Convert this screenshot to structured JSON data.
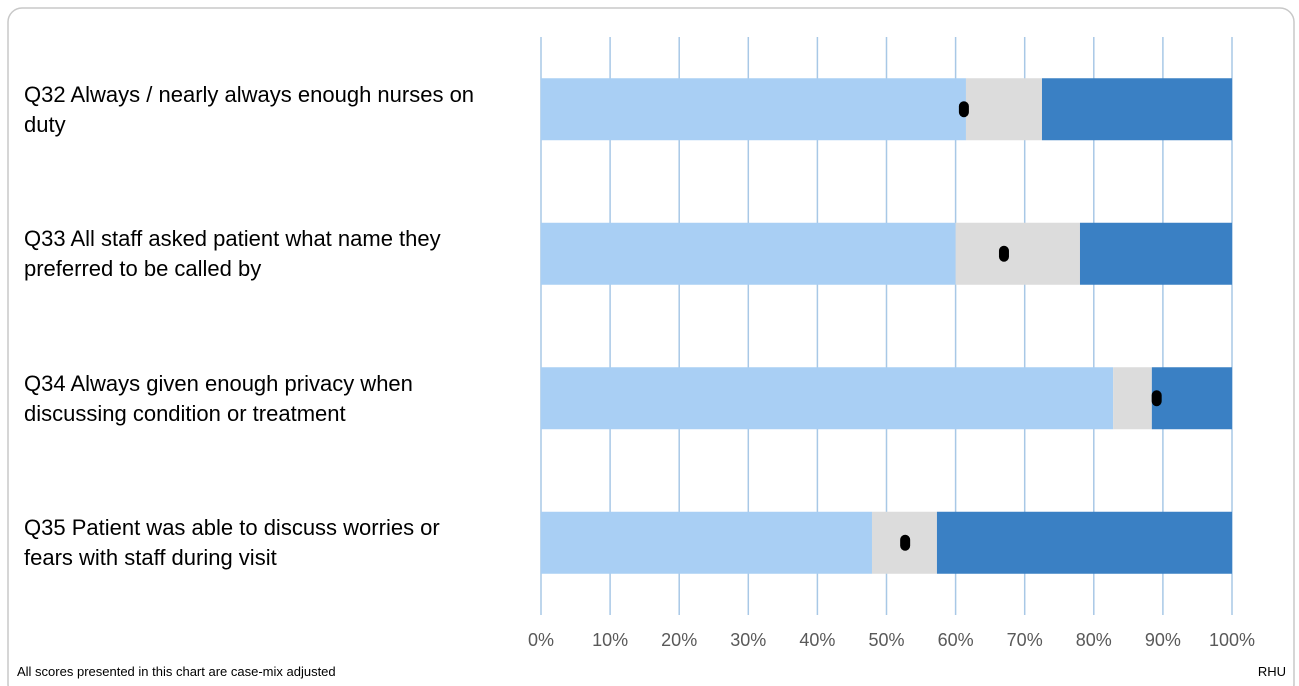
{
  "chart_data": {
    "type": "stacked_bar_horizontal",
    "categories": [
      "Q32 Always / nearly always enough nurses on duty",
      "Q33 All staff asked patient what name they preferred to be called by",
      "Q34 Always given enough privacy when discussing condition or treatment",
      "Q35 Patient was able to discuss worries or fears with staff during visit"
    ],
    "series": [
      {
        "color": "#a9cff4",
        "values": [
          61.5,
          60,
          82.8,
          47.9
        ]
      },
      {
        "color": "#dcdcdc",
        "values": [
          11,
          18,
          5.6,
          9.4
        ]
      },
      {
        "color": "#3a80c4",
        "values": [
          27.5,
          22,
          11.6,
          42.7
        ]
      }
    ],
    "marker_values": [
      61.2,
      67,
      89.1,
      52.7
    ],
    "marker_color": "#000000",
    "xlim": [
      0,
      100
    ],
    "xticks": [
      {
        "value": 0,
        "label": "0%"
      },
      {
        "value": 10,
        "label": "10%"
      },
      {
        "value": 20,
        "label": "20%"
      },
      {
        "value": 30,
        "label": "30%"
      },
      {
        "value": 40,
        "label": "40%"
      },
      {
        "value": 50,
        "label": "50%"
      },
      {
        "value": 60,
        "label": "60%"
      },
      {
        "value": 70,
        "label": "70%"
      },
      {
        "value": 80,
        "label": "80%"
      },
      {
        "value": 90,
        "label": "90%"
      },
      {
        "value": 100,
        "label": "100%"
      }
    ],
    "grid": true,
    "footnote": "All scores presented in this chart are case-mix adjusted",
    "source": "RHU"
  }
}
